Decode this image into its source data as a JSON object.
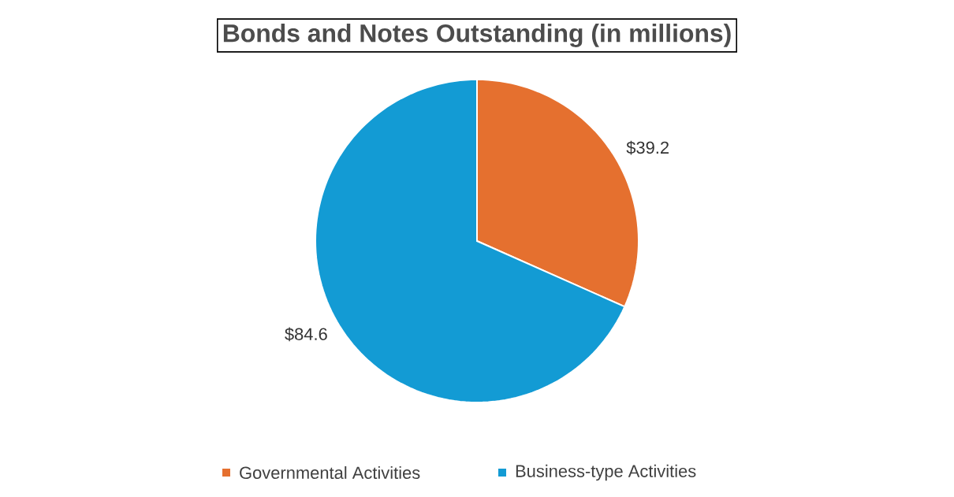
{
  "chart_data": {
    "type": "pie",
    "title": "Bonds and Notes Outstanding (in millions)",
    "categories": [
      "Governmental Activities",
      "Business-type Activities"
    ],
    "values": [
      39.2,
      84.6
    ],
    "colors": [
      "#e5702f",
      "#139bd4"
    ],
    "value_labels": [
      "$39.2",
      "$84.6"
    ],
    "legend": "bottom"
  }
}
